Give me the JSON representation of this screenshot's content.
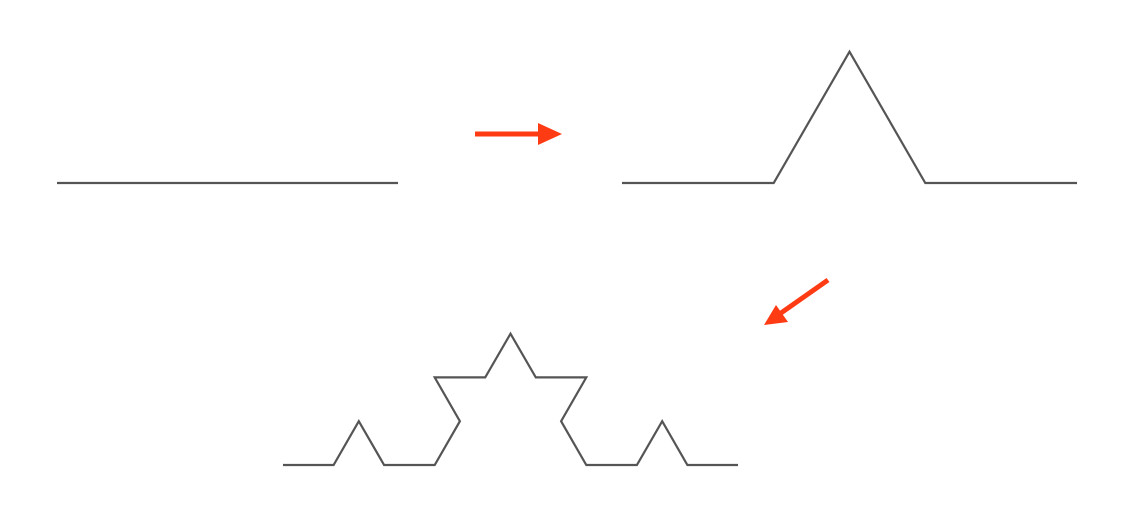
{
  "diagram": {
    "subject": "koch-curve-iterations",
    "stages": [
      {
        "name": "stage-0-initiator",
        "iteration": 0
      },
      {
        "name": "stage-1-generator",
        "iteration": 1
      },
      {
        "name": "stage-2",
        "iteration": 2
      }
    ],
    "arrows": [
      {
        "name": "arrow-right",
        "direction": "right"
      },
      {
        "name": "arrow-down-left",
        "direction": "down-left"
      }
    ]
  },
  "colors": {
    "background": "#ffffff",
    "curve": "#555555",
    "arrow": "#ff3b13"
  }
}
